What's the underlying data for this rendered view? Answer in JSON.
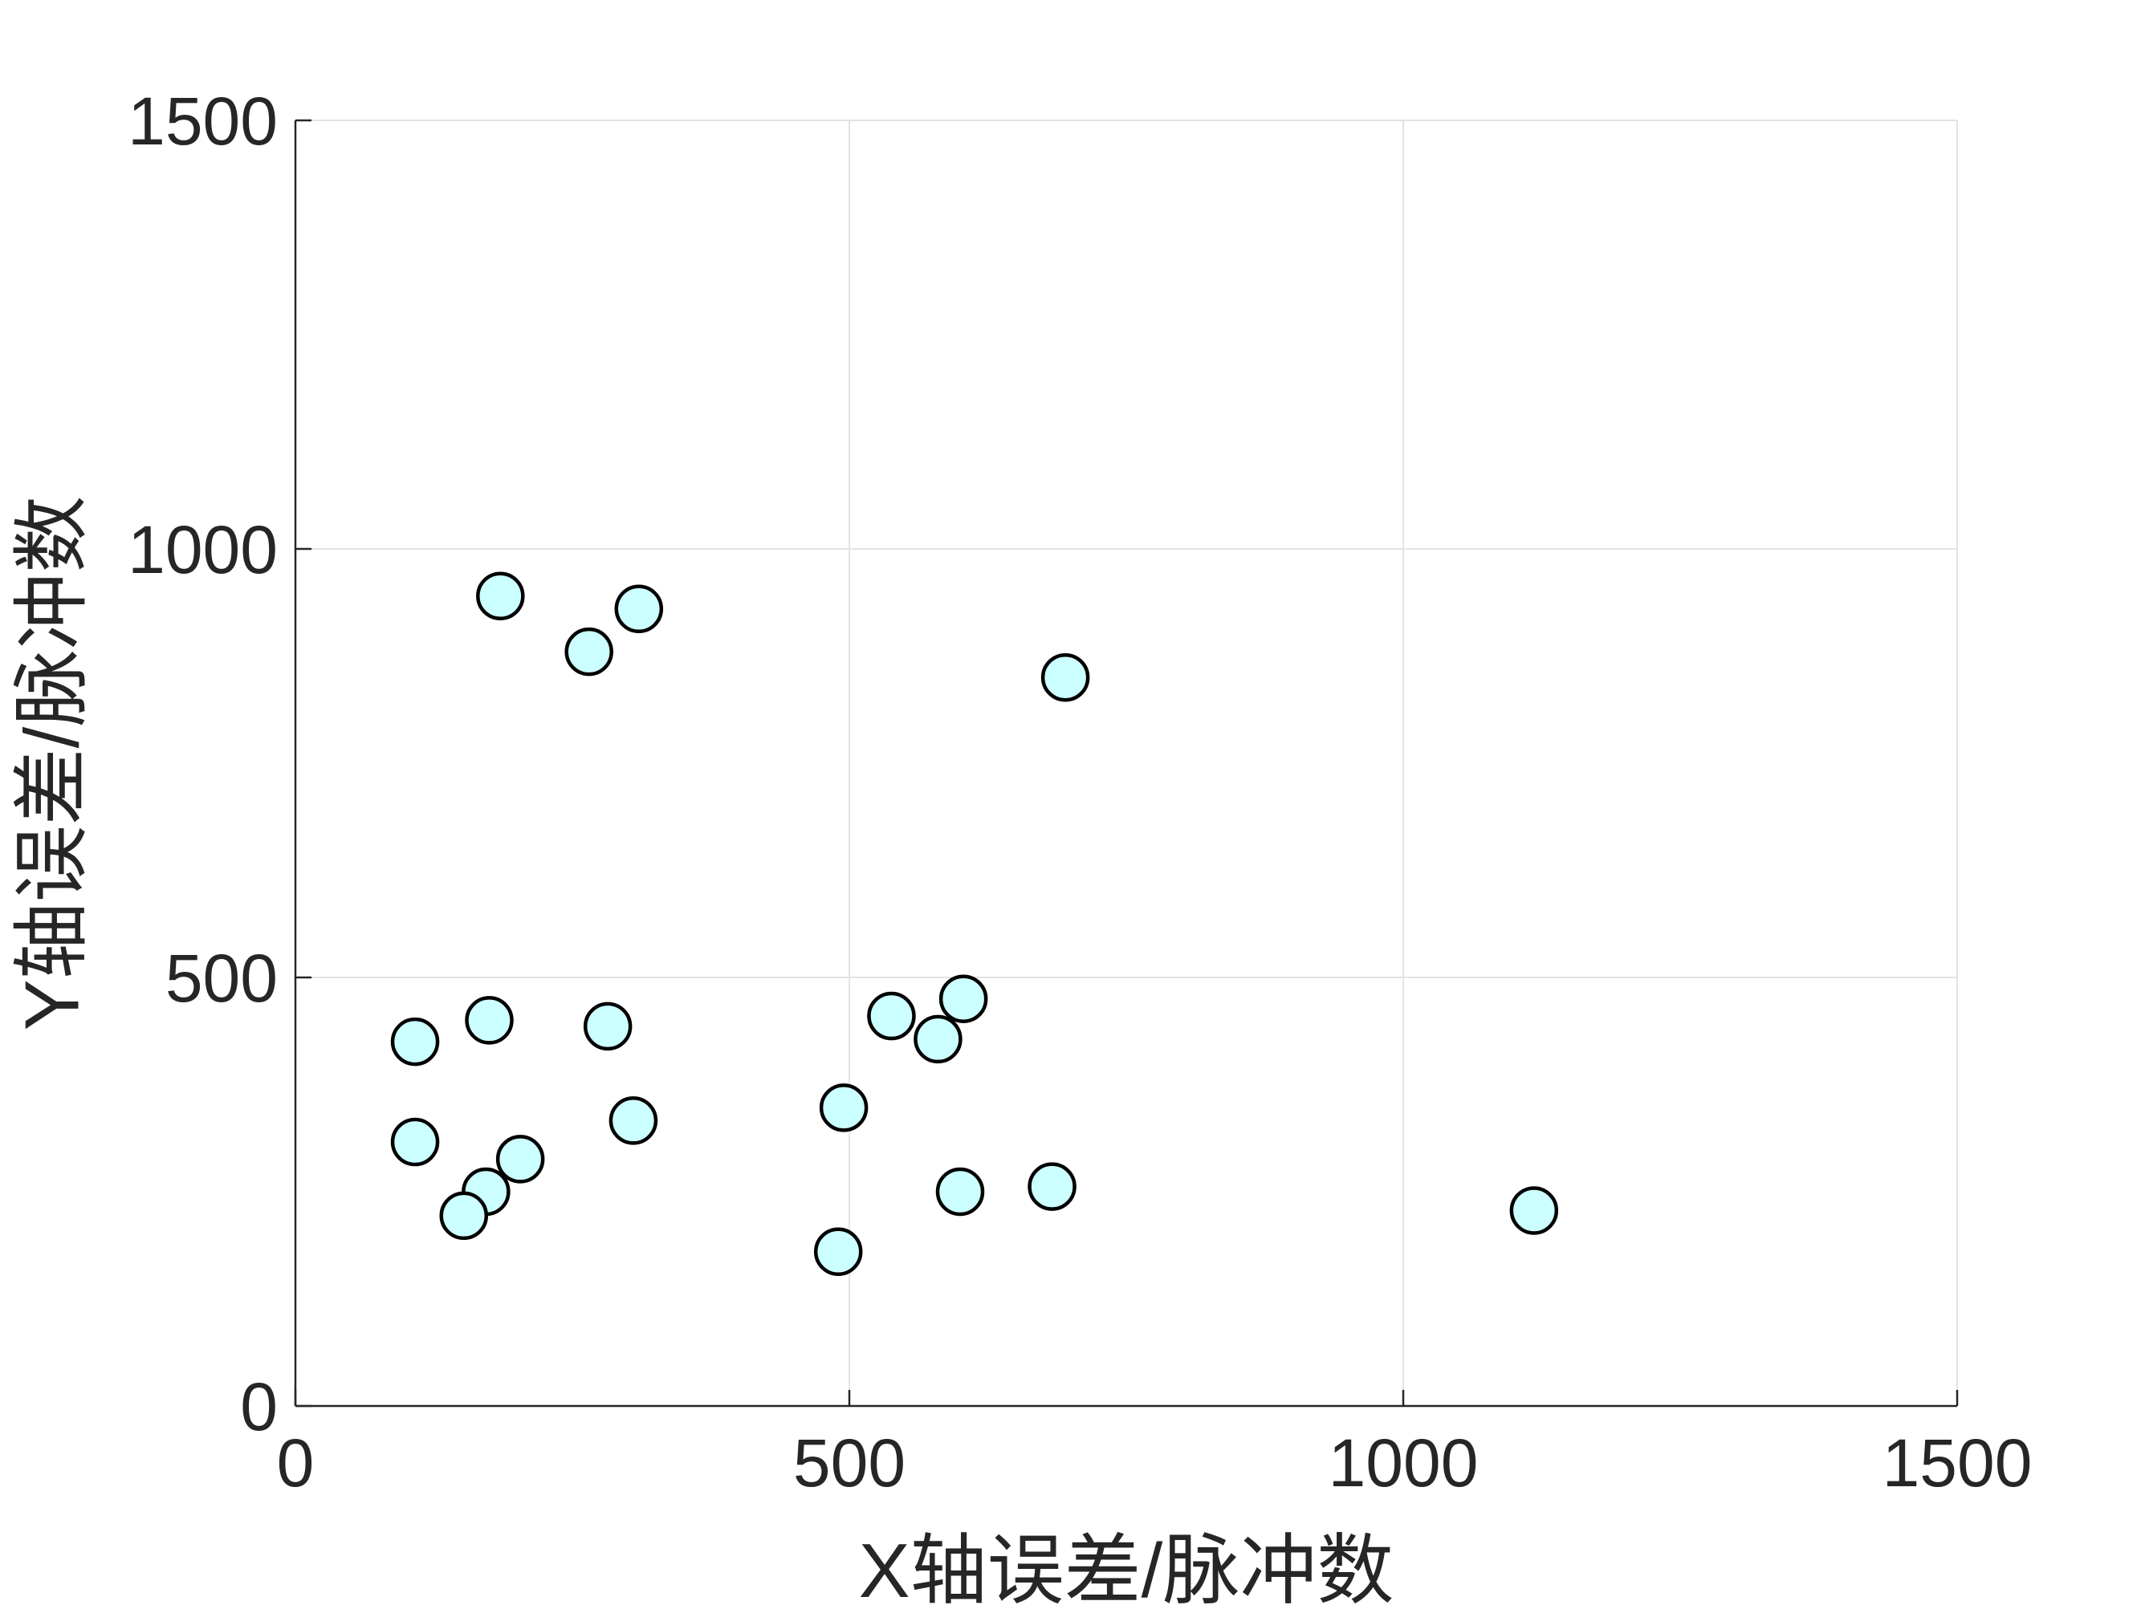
{
  "chart_data": {
    "type": "scatter",
    "title": "",
    "xlabel": "X轴误差/脉冲数",
    "ylabel": "Y轴误差/脉冲数",
    "xlim": [
      0,
      1500
    ],
    "ylim": [
      0,
      1500
    ],
    "xticks": [
      "0",
      "500",
      "1000",
      "1500"
    ],
    "yticks": [
      "0",
      "500",
      "1000",
      "1500"
    ],
    "grid": true,
    "marker_fill": "#ccffff",
    "marker_edge": "#000000",
    "points": [
      {
        "x": 185,
        "y": 945
      },
      {
        "x": 265,
        "y": 880
      },
      {
        "x": 310,
        "y": 930
      },
      {
        "x": 695,
        "y": 850
      },
      {
        "x": 108,
        "y": 425
      },
      {
        "x": 175,
        "y": 450
      },
      {
        "x": 282,
        "y": 443
      },
      {
        "x": 538,
        "y": 455
      },
      {
        "x": 580,
        "y": 428
      },
      {
        "x": 603,
        "y": 475
      },
      {
        "x": 108,
        "y": 308
      },
      {
        "x": 305,
        "y": 333
      },
      {
        "x": 495,
        "y": 348
      },
      {
        "x": 203,
        "y": 288
      },
      {
        "x": 172,
        "y": 250
      },
      {
        "x": 152,
        "y": 222
      },
      {
        "x": 600,
        "y": 250
      },
      {
        "x": 683,
        "y": 256
      },
      {
        "x": 490,
        "y": 180
      },
      {
        "x": 1118,
        "y": 228
      }
    ]
  }
}
